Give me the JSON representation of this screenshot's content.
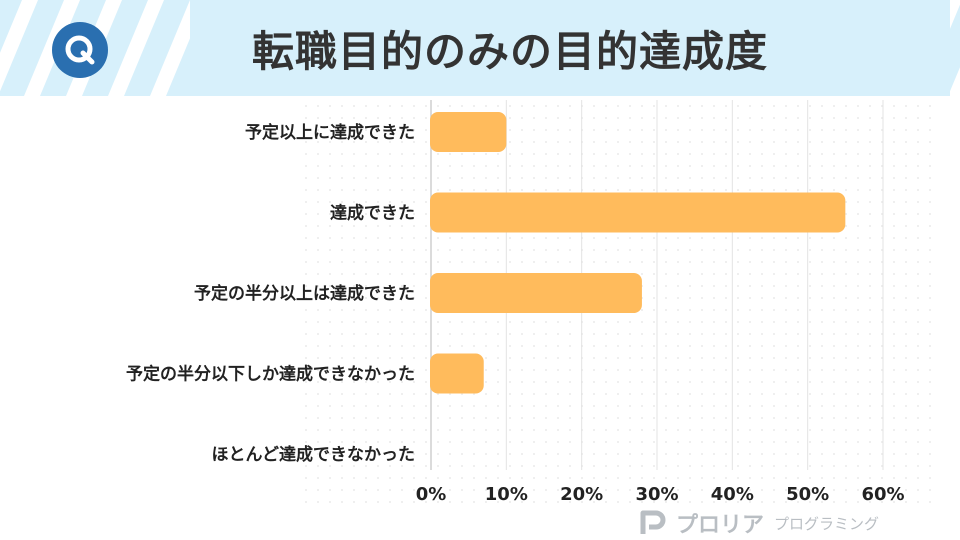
{
  "header": {
    "title": "転職目的のみの目的達成度",
    "badge_letter": "Q",
    "stripe_color": "#ffffff",
    "bg_color": "#d7f0fb",
    "badge_color": "#2a6fb0"
  },
  "brand": {
    "name": "プロリア",
    "sub": "プログラミング",
    "color": "#b9bec3"
  },
  "chart_data": {
    "type": "bar",
    "orientation": "horizontal",
    "categories": [
      "予定以上に達成できた",
      "達成できた",
      "予定の半分以上は達成できた",
      "予定の半分以下しか達成できなかった",
      "ほとんど達成できなかった"
    ],
    "series": [
      {
        "values": [
          10,
          55,
          28,
          7,
          0
        ],
        "color": "#ffbb5c"
      }
    ],
    "xlim": [
      0,
      60
    ],
    "xticks": [
      0,
      10,
      20,
      30,
      40,
      50,
      60
    ],
    "tick_suffix": "%",
    "grid": true,
    "legend": "none"
  }
}
